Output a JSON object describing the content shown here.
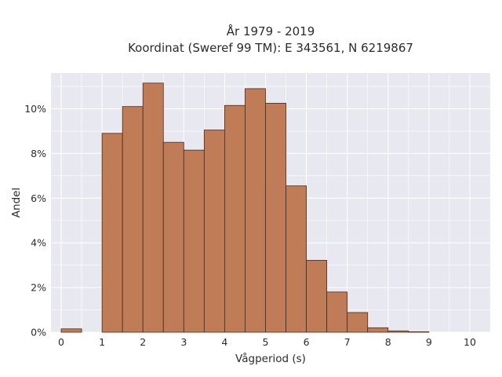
{
  "chart_data": {
    "type": "bar",
    "title": "År 1979 - 2019",
    "subtitle": "Koordinat (Sweref 99 TM): E 343561, N 6219867",
    "xlabel": "Vågperiod (s)",
    "ylabel": "Andel",
    "xlim": [
      -0.25,
      10.5
    ],
    "ylim": [
      0,
      11.6
    ],
    "x_ticks": [
      "0",
      "1",
      "2",
      "3",
      "4",
      "5",
      "6",
      "7",
      "8",
      "9",
      "10"
    ],
    "y_ticks": [
      "0%",
      "2%",
      "4%",
      "6%",
      "8%",
      "10%"
    ],
    "bin_width": 0.5,
    "bin_starts": [
      0,
      0.5,
      1,
      1.5,
      2,
      2.5,
      3,
      3.5,
      4,
      4.5,
      5,
      5.5,
      6,
      6.5,
      7,
      7.5,
      8,
      8.5,
      9,
      9.5
    ],
    "values": [
      0.15,
      0,
      8.9,
      10.1,
      11.15,
      8.5,
      8.15,
      9.05,
      10.15,
      10.9,
      10.25,
      6.55,
      3.22,
      1.8,
      0.88,
      0.2,
      0.06,
      0.02,
      0,
      0
    ],
    "grid": true,
    "colors": {
      "bar_fill": "#c07c56",
      "bar_edge": "#4a2a1a",
      "plot_bg": "#e8e8f0",
      "grid": "#ffffff"
    }
  }
}
